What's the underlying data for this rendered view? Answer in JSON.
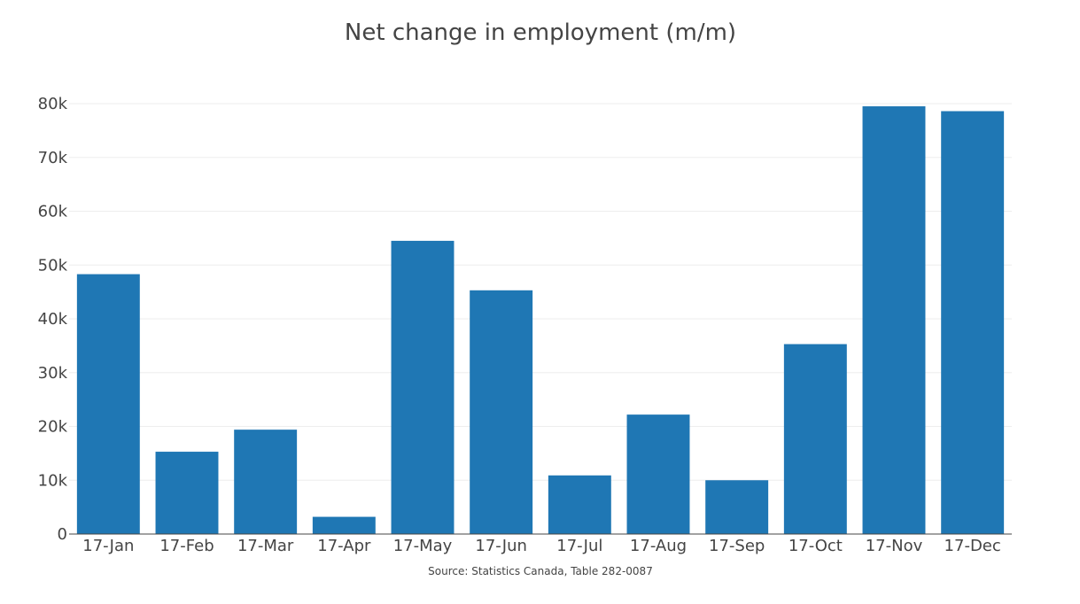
{
  "chart_data": {
    "type": "bar",
    "title": "Net change in employment (m/m)",
    "xlabel": "",
    "ylabel": "",
    "categories": [
      "17-Jan",
      "17-Feb",
      "17-Mar",
      "17-Apr",
      "17-May",
      "17-Jun",
      "17-Jul",
      "17-Aug",
      "17-Sep",
      "17-Oct",
      "17-Nov",
      "17-Dec"
    ],
    "values": [
      48300,
      15300,
      19400,
      3200,
      54500,
      45300,
      10900,
      22200,
      10000,
      35300,
      79500,
      78600
    ],
    "ylim": [
      0,
      80000
    ],
    "y_ticks": [
      0,
      10000,
      20000,
      30000,
      40000,
      50000,
      60000,
      70000,
      80000
    ],
    "y_tick_labels": [
      "0",
      "10k",
      "20k",
      "30k",
      "40k",
      "50k",
      "60k",
      "70k",
      "80k"
    ],
    "grid": true,
    "legend": "none",
    "bar_color": "#1f77b4",
    "source": "Source: Statistics Canada, Table 282-0087"
  }
}
